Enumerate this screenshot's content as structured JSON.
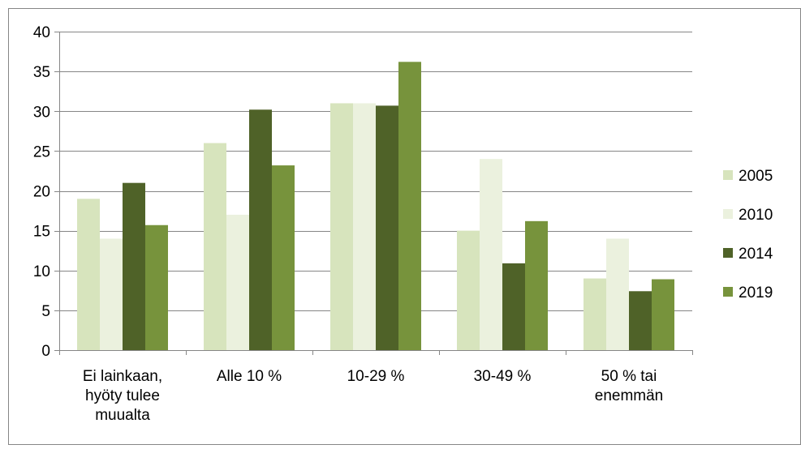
{
  "chart_data": {
    "type": "bar",
    "categories": [
      [
        "Ei lainkaan,",
        "hyöty tulee",
        "muualta"
      ],
      [
        "Alle 10 %"
      ],
      [
        "10-29 %"
      ],
      [
        "30-49 %"
      ],
      [
        "50 % tai",
        "enemmän"
      ]
    ],
    "series": [
      {
        "name": "2005",
        "color": "#d7e4bd",
        "values": [
          19,
          26,
          31,
          15,
          9
        ]
      },
      {
        "name": "2010",
        "color": "#ebf1de",
        "values": [
          14,
          17,
          31,
          24,
          14
        ]
      },
      {
        "name": "2014",
        "color": "#4f6228",
        "values": [
          21,
          30.2,
          30.7,
          10.9,
          7.4
        ]
      },
      {
        "name": "2019",
        "color": "#77933c",
        "values": [
          15.7,
          23.2,
          36.2,
          16.2,
          8.9
        ]
      }
    ],
    "title": "",
    "xlabel": "",
    "ylabel": "",
    "ylim": [
      0,
      40
    ],
    "yticks": [
      "0",
      "5",
      "10",
      "15",
      "20",
      "25",
      "30",
      "35",
      "40"
    ],
    "grid": true,
    "gridline_color": "#868686",
    "legend_position": "right"
  }
}
